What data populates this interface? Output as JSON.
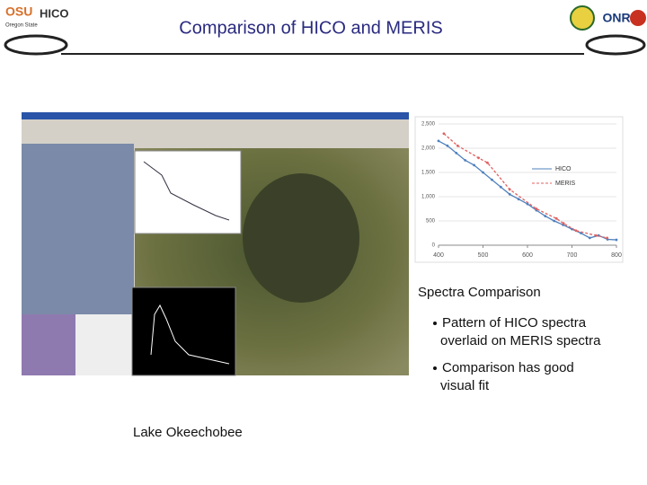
{
  "header": {
    "title": "Comparison of HICO and MERIS",
    "logo_left": "OSU",
    "logo_left_sub": "Oregon State",
    "logo_left_name": "HICO",
    "logo_right": "ONR"
  },
  "screenshot_caption": "Lake Okeechobee",
  "chart_caption": "Spectra Comparison",
  "bullets": [
    {
      "lines": [
        "Pattern of HICO spectra",
        "overlaid on MERIS spectra"
      ]
    },
    {
      "lines": [
        "Comparison has good",
        "visual fit"
      ]
    }
  ],
  "chart_data": {
    "type": "line",
    "series": [
      {
        "name": "HICO",
        "color": "#4f81bd",
        "x": [
          400,
          420,
          440,
          460,
          480,
          500,
          520,
          540,
          560,
          580,
          600,
          620,
          640,
          660,
          680,
          700,
          720,
          740,
          760,
          780,
          800
        ],
        "values": [
          2150,
          2050,
          1900,
          1750,
          1650,
          1500,
          1350,
          1200,
          1050,
          950,
          850,
          720,
          600,
          500,
          420,
          330,
          250,
          150,
          200,
          120,
          110
        ]
      },
      {
        "name": "MERIS",
        "color": "#e06060",
        "x": [
          412,
          443,
          490,
          510,
          560,
          620,
          665,
          681,
          709,
          754,
          779
        ],
        "values": [
          2300,
          2050,
          1800,
          1700,
          1150,
          750,
          550,
          450,
          300,
          200,
          150
        ]
      }
    ],
    "xlim": [
      400,
      800
    ],
    "xticks": [
      400,
      500,
      600,
      700,
      800
    ],
    "ylim": [
      0,
      2500
    ],
    "yticks": [
      0,
      500,
      {
        "value": 1000,
        "label": "1,000"
      },
      {
        "value": 1500,
        "label": "1,500"
      },
      {
        "value": 2000,
        "label": "2,000"
      },
      {
        "value": 2500,
        "label": "2,500"
      }
    ],
    "grid": true
  }
}
